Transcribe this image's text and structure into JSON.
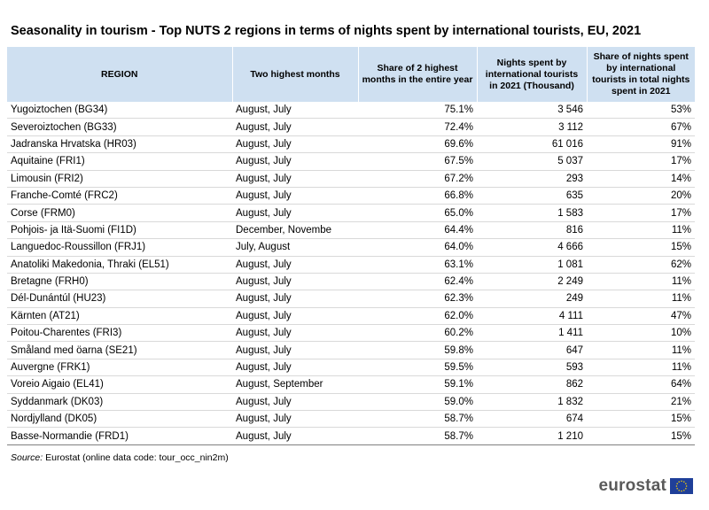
{
  "title": "Seasonality in tourism - Top NUTS 2 regions in terms of nights spent by international tourists, EU, 2021",
  "source_label": "Source:",
  "source_text": "Eurostat (online data code: tour_occ_nin2m)",
  "logo_text": "eurostat",
  "colors": {
    "header_bg": "#cfe0f1",
    "logo_text": "#5a5a5a",
    "flag_blue": "#1f3f99",
    "flag_star": "#ffd600"
  },
  "icons": {
    "logo": "eu-flag-icon"
  },
  "chart_data": {
    "type": "table",
    "title": "Seasonality in tourism - Top NUTS 2 regions in terms of nights spent by international tourists, EU, 2021",
    "columns": [
      "REGION",
      "Two highest months",
      "Share of 2 highest months in the entire year",
      "Nights spent by international tourists in 2021 (Thousand)",
      "Share of nights spent by international tourists in total nights spent in 2021"
    ],
    "rows": [
      [
        "Yugoiztochen (BG34)",
        "August, July",
        "75.1%",
        "3 546",
        "53%"
      ],
      [
        "Severoiztochen (BG33)",
        "August, July",
        "72.4%",
        "3 112",
        "67%"
      ],
      [
        "Jadranska Hrvatska (HR03)",
        "August, July",
        "69.6%",
        "61 016",
        "91%"
      ],
      [
        "Aquitaine (FRI1)",
        "August, July",
        "67.5%",
        "5 037",
        "17%"
      ],
      [
        "Limousin (FRI2)",
        "August, July",
        "67.2%",
        "293",
        "14%"
      ],
      [
        "Franche-Comté (FRC2)",
        "August, July",
        "66.8%",
        "635",
        "20%"
      ],
      [
        "Corse (FRM0)",
        "August, July",
        "65.0%",
        "1 583",
        "17%"
      ],
      [
        "Pohjois- ja Itä-Suomi (FI1D)",
        "December, Novembe",
        "64.4%",
        "816",
        "11%"
      ],
      [
        "Languedoc-Roussillon (FRJ1)",
        "July, August",
        "64.0%",
        "4 666",
        "15%"
      ],
      [
        "Anatoliki Makedonia, Thraki (EL51)",
        "August, July",
        "63.1%",
        "1 081",
        "62%"
      ],
      [
        "Bretagne (FRH0)",
        "August, July",
        "62.4%",
        "2 249",
        "11%"
      ],
      [
        "Dél-Dunántúl (HU23)",
        "August, July",
        "62.3%",
        "249",
        "11%"
      ],
      [
        "Kärnten (AT21)",
        "August, July",
        "62.0%",
        "4 111",
        "47%"
      ],
      [
        "Poitou-Charentes (FRI3)",
        "August, July",
        "60.2%",
        "1 411",
        "10%"
      ],
      [
        "Småland med öarna (SE21)",
        "August, July",
        "59.8%",
        "647",
        "11%"
      ],
      [
        "Auvergne (FRK1)",
        "August, July",
        "59.5%",
        "593",
        "11%"
      ],
      [
        "Voreio Aigaio (EL41)",
        "August, September",
        "59.1%",
        "862",
        "64%"
      ],
      [
        "Syddanmark (DK03)",
        "August, July",
        "59.0%",
        "1 832",
        "21%"
      ],
      [
        "Nordjylland (DK05)",
        "August, July",
        "58.7%",
        "674",
        "15%"
      ],
      [
        "Basse-Normandie  (FRD1)",
        "August, July",
        "58.7%",
        "1 210",
        "15%"
      ]
    ]
  }
}
